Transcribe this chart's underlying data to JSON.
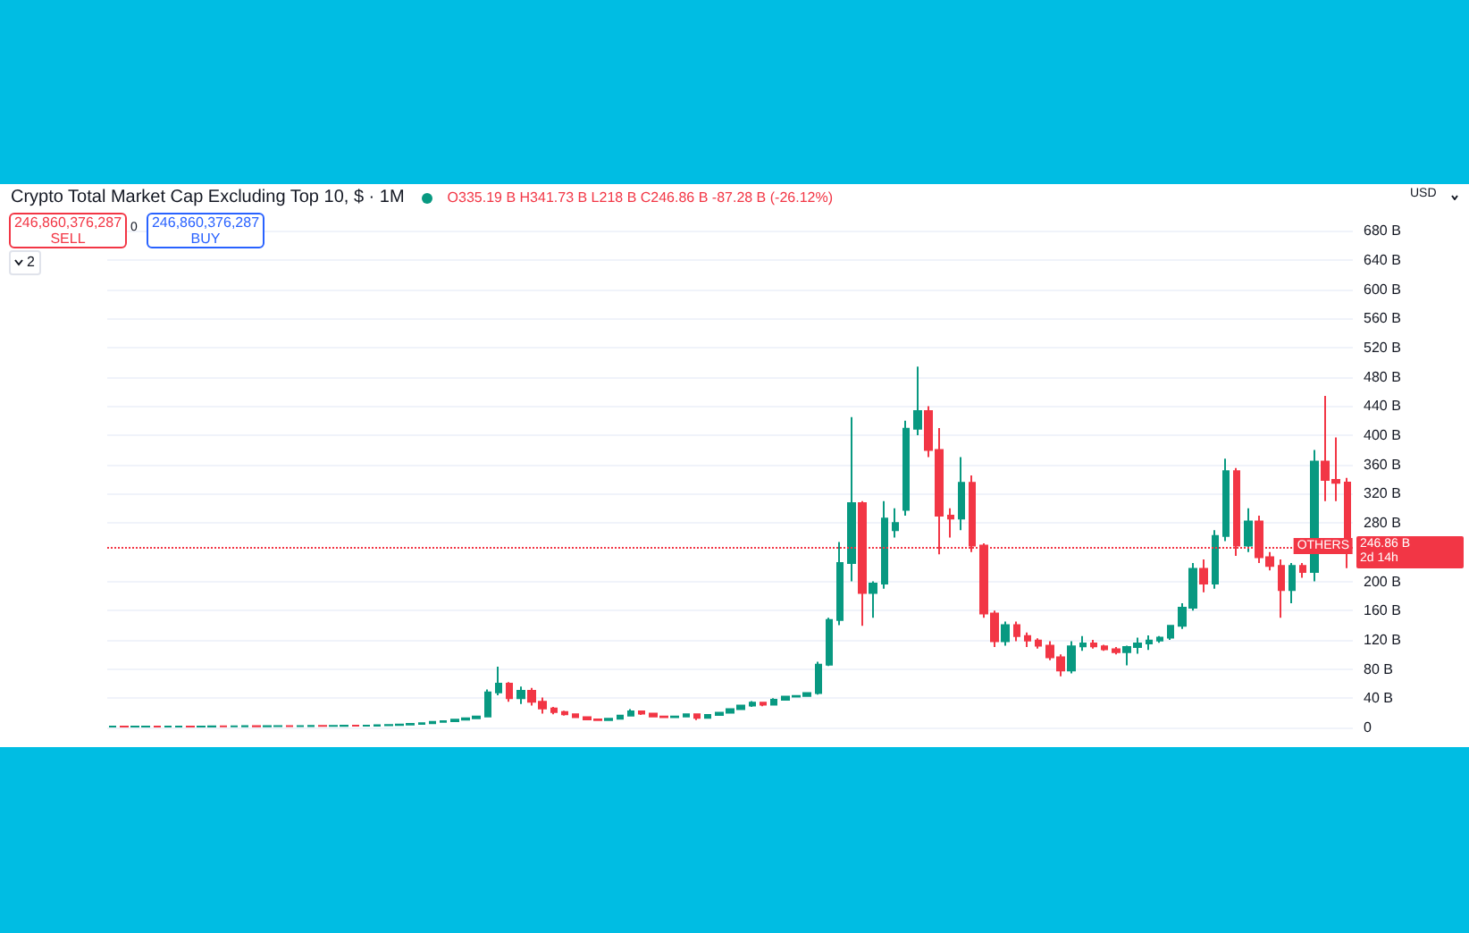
{
  "chart_data": {
    "type": "candlestick",
    "title": "Crypto Total Market Cap Excluding Top 10, $ · 1M",
    "annotations": [
      "O335.19 B H341.73 B L218 B C246.86 B -87.28 B (-26.12%)",
      "246,860,376,287",
      "SELL",
      "0",
      "246,860,376,287",
      "BUY",
      "2",
      "USD",
      "OTHERS",
      "2d 14h"
    ],
    "colors": [
      "#089981",
      "#f23645",
      "#089981",
      "#089981",
      "#f23645",
      "#089981",
      "#089981",
      "#f23645",
      "#089981",
      "#089981",
      "#f23645",
      "#089981",
      "#089981",
      "#f23645",
      "#089981",
      "#089981",
      "#f23645",
      "#089981",
      "#089981",
      "#f23645",
      "#089981",
      "#089981",
      "#f23645",
      "#089981",
      "#089981",
      "#089981",
      "#089981",
      "#089981",
      "#089981",
      "#089981",
      "#089981",
      "#089981",
      "#089981",
      "#089981",
      "#089981",
      "#089981",
      "#f23645",
      "#089981",
      "#f23645",
      "#f23645",
      "#f23645",
      "#f23645",
      "#f23645",
      "#f23645",
      "#f23645",
      "#089981",
      "#089981",
      "#089981",
      "#f23645",
      "#f23645",
      "#f23645",
      "#089981",
      "#089981",
      "#f23645",
      "#089981",
      "#089981",
      "#089981",
      "#089981",
      "#089981",
      "#f23645",
      "#089981",
      "#089981",
      "#089981",
      "#089981",
      "#089981",
      "#089981",
      "#089981",
      "#089981",
      "#f23645",
      "#089981",
      "#089981",
      "#089981",
      "#089981",
      "#089981",
      "#f23645",
      "#f23645",
      "#f23645",
      "#089981",
      "#f23645",
      "#f23645",
      "#f23645",
      "#089981",
      "#f23645",
      "#f23645",
      "#f23645",
      "#f23645",
      "#f23645",
      "#089981",
      "#089981",
      "#f23645",
      "#f23645",
      "#f23645",
      "#089981",
      "#089981",
      "#089981",
      "#089981",
      "#089981",
      "#089981",
      "#089981",
      "#f23645",
      "#089981",
      "#089981",
      "#f23645",
      "#089981",
      "#f23645",
      "#f23645",
      "#f23645",
      "#089981",
      "#f23645",
      "#089981",
      "#f23645",
      "#f23645",
      "#f23645"
    ],
    "categories": [
      null,
      null,
      null,
      null,
      null,
      null,
      null,
      null,
      null,
      null,
      null,
      null,
      null,
      null,
      null,
      null,
      null,
      null,
      null,
      null,
      null,
      null,
      null,
      null,
      null,
      null,
      null,
      null,
      null,
      null,
      null,
      null,
      null,
      null,
      null,
      null,
      null,
      null,
      null,
      null,
      null,
      null,
      null,
      null,
      null,
      null,
      null,
      null,
      null,
      null,
      null,
      null,
      null,
      null,
      null,
      null,
      null,
      null,
      null,
      null,
      null,
      null,
      null,
      null,
      null,
      null,
      null,
      null,
      null,
      null,
      null,
      null,
      null,
      null,
      null,
      null,
      null,
      null,
      null,
      null,
      null,
      null,
      null,
      null,
      null,
      null,
      null,
      null,
      null,
      null,
      null,
      null,
      null,
      null,
      null,
      null,
      null,
      null,
      null,
      null,
      null,
      null,
      null,
      null,
      null,
      null,
      null,
      null,
      null,
      null,
      null,
      null,
      null
    ],
    "ohlc": [
      [
        1,
        1.2,
        0.9,
        1.1
      ],
      [
        1.1,
        1.3,
        1,
        1
      ],
      [
        1,
        1.2,
        0.9,
        1.1
      ],
      [
        1.1,
        1.3,
        1,
        1.2
      ],
      [
        1.2,
        1.4,
        1,
        1.1
      ],
      [
        1.1,
        1.3,
        1,
        1.2
      ],
      [
        1.2,
        1.4,
        1.1,
        1.3
      ],
      [
        1.3,
        1.5,
        1.1,
        1.2
      ],
      [
        1.2,
        1.4,
        1.1,
        1.3
      ],
      [
        1.3,
        1.6,
        1.2,
        1.5
      ],
      [
        1.5,
        1.7,
        1.3,
        1.4
      ],
      [
        1.4,
        1.6,
        1.3,
        1.5
      ],
      [
        1.5,
        1.8,
        1.4,
        1.7
      ],
      [
        1.7,
        1.9,
        1.5,
        1.6
      ],
      [
        1.6,
        1.8,
        1.5,
        1.7
      ],
      [
        1.7,
        2,
        1.6,
        1.9
      ],
      [
        1.9,
        2.1,
        1.7,
        1.8
      ],
      [
        1.8,
        2,
        1.7,
        1.9
      ],
      [
        1.9,
        2.2,
        1.8,
        2.1
      ],
      [
        2.1,
        2.3,
        1.9,
        2
      ],
      [
        2,
        2.3,
        1.9,
        2.2
      ],
      [
        2.2,
        2.5,
        2.1,
        2.4
      ],
      [
        2.4,
        2.6,
        2.2,
        2.3
      ],
      [
        2.3,
        2.6,
        2.2,
        2.5
      ],
      [
        2.5,
        3,
        2.4,
        2.9
      ],
      [
        2.9,
        3.5,
        2.8,
        3.4
      ],
      [
        3.4,
        4,
        3.2,
        3.8
      ],
      [
        3.8,
        5,
        3.6,
        4.7
      ],
      [
        4.7,
        6,
        4.5,
        5.8
      ],
      [
        5.8,
        8,
        5.5,
        7.5
      ],
      [
        7.5,
        9,
        7,
        8.6
      ],
      [
        8.6,
        11,
        8,
        10.5
      ],
      [
        10.5,
        13,
        10,
        12.4
      ],
      [
        12.4,
        16,
        12,
        15
      ],
      [
        15,
        52,
        14,
        48
      ],
      [
        48,
        83,
        44,
        60
      ],
      [
        60,
        62,
        35,
        40
      ],
      [
        40,
        56,
        32,
        50
      ],
      [
        50,
        54,
        30,
        35
      ],
      [
        35,
        41,
        19,
        26
      ],
      [
        26,
        28,
        18,
        21
      ],
      [
        21,
        23,
        16,
        18
      ],
      [
        18,
        19,
        13,
        14
      ],
      [
        14,
        15,
        10,
        11
      ],
      [
        11,
        12,
        9,
        10
      ],
      [
        10,
        13,
        9.5,
        12
      ],
      [
        12,
        17,
        11,
        16
      ],
      [
        16,
        25,
        15,
        22
      ],
      [
        22,
        23,
        17,
        19
      ],
      [
        19,
        20,
        14,
        15
      ],
      [
        15,
        16,
        13,
        14
      ],
      [
        14,
        16,
        13,
        15
      ],
      [
        15,
        19,
        14,
        18
      ],
      [
        18,
        19,
        10,
        13
      ],
      [
        13,
        18,
        12,
        17
      ],
      [
        17,
        21,
        16,
        20
      ],
      [
        20,
        26,
        19,
        25
      ],
      [
        25,
        31,
        24,
        30
      ],
      [
        30,
        36,
        28,
        34
      ],
      [
        34,
        35,
        29,
        31
      ],
      [
        31,
        40,
        30,
        38
      ],
      [
        38,
        43,
        37,
        42
      ],
      [
        42,
        44,
        41,
        43
      ],
      [
        43,
        48,
        42,
        47
      ],
      [
        47,
        90,
        45,
        86
      ],
      [
        86,
        150,
        84,
        147
      ],
      [
        147,
        254,
        140,
        225
      ],
      [
        225,
        425,
        200,
        307
      ],
      [
        307,
        310,
        139,
        184
      ],
      [
        184,
        200,
        150,
        197
      ],
      [
        197,
        310,
        190,
        286
      ],
      [
        270,
        300,
        260,
        280
      ],
      [
        298,
        420,
        290,
        409
      ],
      [
        409,
        494,
        400,
        433
      ],
      [
        433,
        440,
        370,
        380
      ],
      [
        380,
        410,
        237,
        290
      ],
      [
        290,
        300,
        260,
        286
      ],
      [
        286,
        370,
        270,
        335
      ],
      [
        335,
        345,
        240,
        249
      ],
      [
        249,
        252,
        150,
        156
      ],
      [
        156,
        160,
        110,
        118
      ],
      [
        118,
        145,
        112,
        140
      ],
      [
        140,
        145,
        118,
        125
      ],
      [
        125,
        130,
        110,
        119
      ],
      [
        119,
        122,
        108,
        112
      ],
      [
        112,
        118,
        92,
        96
      ],
      [
        96,
        100,
        70,
        78
      ],
      [
        78,
        118,
        74,
        111
      ],
      [
        111,
        125,
        105,
        115
      ],
      [
        115,
        120,
        108,
        111
      ],
      [
        111,
        113,
        105,
        107
      ],
      [
        107,
        110,
        100,
        103
      ],
      [
        103,
        112,
        85,
        110
      ],
      [
        110,
        123,
        101,
        115
      ],
      [
        115,
        126,
        106,
        119
      ],
      [
        119,
        125,
        116,
        123
      ],
      [
        123,
        140,
        120,
        139
      ],
      [
        139,
        170,
        135,
        164
      ],
      [
        164,
        225,
        160,
        217
      ],
      [
        217,
        230,
        185,
        197
      ],
      [
        197,
        270,
        190,
        262
      ],
      [
        262,
        368,
        255,
        351
      ],
      [
        351,
        355,
        235,
        249
      ],
      [
        249,
        300,
        240,
        282
      ],
      [
        282,
        290,
        225,
        233
      ],
      [
        233,
        240,
        215,
        221
      ],
      [
        221,
        230,
        150,
        188
      ],
      [
        188,
        225,
        170,
        221
      ],
      [
        221,
        225,
        205,
        213
      ],
      [
        213,
        380,
        200,
        364
      ],
      [
        364,
        454,
        310,
        339
      ],
      [
        339,
        397,
        310,
        335
      ],
      [
        335.19,
        341.73,
        218,
        246.86
      ]
    ],
    "ylim": [
      -27,
      744
    ],
    "yticks": [
      {
        "value": 0,
        "label": "0"
      },
      {
        "value": 40,
        "label": "40 B"
      },
      {
        "value": 80,
        "label": "80 B"
      },
      {
        "value": 120,
        "label": "120 B"
      },
      {
        "value": 160,
        "label": "160 B"
      },
      {
        "value": 200,
        "label": "200 B"
      },
      {
        "value": 280,
        "label": "280 B"
      },
      {
        "value": 320,
        "label": "320 B"
      },
      {
        "value": 360,
        "label": "360 B"
      },
      {
        "value": 400,
        "label": "400 B"
      },
      {
        "value": 440,
        "label": "440 B"
      },
      {
        "value": 480,
        "label": "480 B"
      },
      {
        "value": 520,
        "label": "520 B"
      },
      {
        "value": 560,
        "label": "560 B"
      },
      {
        "value": 600,
        "label": "600 B"
      },
      {
        "value": 640,
        "label": "640 B"
      },
      {
        "value": 680,
        "label": "680 B"
      }
    ],
    "ref_lines": [
      {
        "axis": "y",
        "value": 246.86,
        "label": "246.86 B",
        "color": "#f23645",
        "line_style": "dotted"
      }
    ],
    "grid": "y",
    "tick_labels": "y"
  }
}
